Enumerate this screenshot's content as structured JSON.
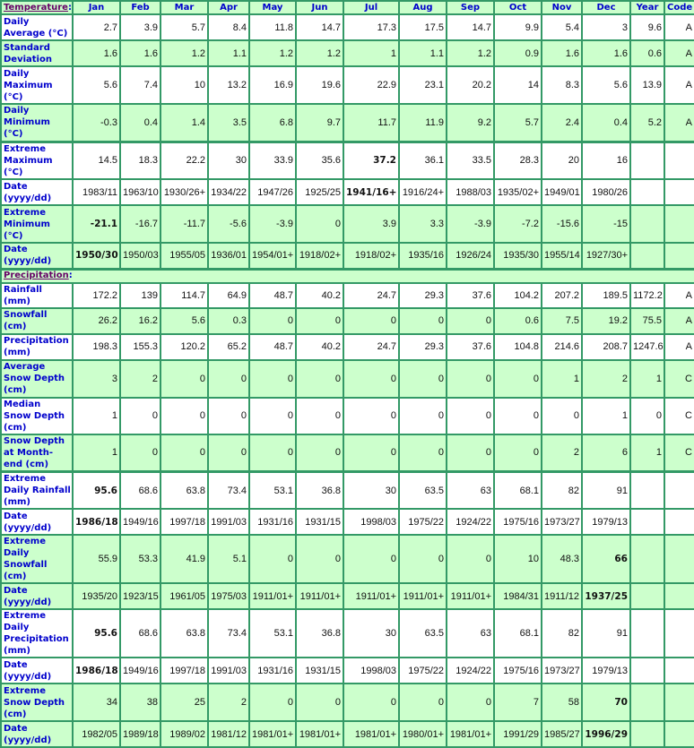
{
  "header": {
    "section_label": "Temperature",
    "columns": [
      "Jan",
      "Feb",
      "Mar",
      "Apr",
      "May",
      "Jun",
      "Jul",
      "Aug",
      "Sep",
      "Oct",
      "Nov",
      "Dec",
      "Year",
      "Code"
    ]
  },
  "colors": {
    "border": "#339966",
    "row_alt": "#ccffcc",
    "label_text": "#0000cc",
    "section_link": "#660066"
  },
  "sections": [
    {
      "title": "Temperature",
      "rows": [
        {
          "label": "Daily Average (°C)",
          "bg": "w",
          "h": 29,
          "values": [
            "2.7",
            "3.9",
            "5.7",
            "8.4",
            "11.8",
            "14.7",
            "17.3",
            "17.5",
            "14.7",
            "9.9",
            "5.4",
            "3",
            "9.6",
            "A"
          ],
          "bold": []
        },
        {
          "label": "Standard Deviation",
          "bg": "g",
          "h": 29,
          "values": [
            "1.6",
            "1.6",
            "1.2",
            "1.1",
            "1.2",
            "1.2",
            "1",
            "1.1",
            "1.2",
            "0.9",
            "1.6",
            "1.6",
            "0.6",
            "A"
          ],
          "bold": []
        },
        {
          "label": "Daily Maximum (°C)",
          "bg": "w",
          "h": 42,
          "values": [
            "5.6",
            "7.4",
            "10",
            "13.2",
            "16.9",
            "19.6",
            "22.9",
            "23.1",
            "20.2",
            "14",
            "8.3",
            "5.6",
            "13.9",
            "A"
          ],
          "bold": []
        },
        {
          "label": "Daily Minimum (°C)",
          "bg": "g",
          "h": 42,
          "values": [
            "-0.3",
            "0.4",
            "1.4",
            "3.5",
            "6.8",
            "9.7",
            "11.7",
            "11.9",
            "9.2",
            "5.7",
            "2.4",
            "0.4",
            "5.2",
            "A"
          ],
          "bold": []
        },
        {
          "label": "Extreme Maximum (°C)",
          "bg": "w",
          "h": 42,
          "sep": true,
          "values": [
            "14.5",
            "18.3",
            "22.2",
            "30",
            "33.9",
            "35.6",
            "37.2",
            "36.1",
            "33.5",
            "28.3",
            "20",
            "16",
            "",
            ""
          ],
          "bold": [
            6
          ]
        },
        {
          "label": "Date (yyyy/dd)",
          "bg": "w",
          "h": 29,
          "values": [
            "1983/11",
            "1963/10",
            "1930/26+",
            "1934/22",
            "1947/26",
            "1925/25",
            "1941/16+",
            "1916/24+",
            "1988/03",
            "1935/02+",
            "1949/01",
            "1980/26",
            "",
            ""
          ],
          "bold": [
            6
          ]
        },
        {
          "label": "Extreme Minimum (°C)",
          "bg": "g",
          "h": 42,
          "values": [
            "-21.1",
            "-16.7",
            "-11.7",
            "-5.6",
            "-3.9",
            "0",
            "3.9",
            "3.3",
            "-3.9",
            "-7.2",
            "-15.6",
            "-15",
            "",
            ""
          ],
          "bold": [
            0
          ]
        },
        {
          "label": "Date (yyyy/dd)",
          "bg": "g",
          "h": 29,
          "values": [
            "1950/30",
            "1950/03",
            "1955/05",
            "1936/01",
            "1954/01+",
            "1918/02+",
            "1918/02+",
            "1935/16",
            "1926/24",
            "1935/30",
            "1955/14",
            "1927/30+",
            "",
            ""
          ],
          "bold": [
            0
          ]
        }
      ]
    },
    {
      "title": "Precipitation",
      "rows": [
        {
          "label": "Rainfall (mm)",
          "bg": "w",
          "h": 16,
          "values": [
            "172.2",
            "139",
            "114.7",
            "64.9",
            "48.7",
            "40.2",
            "24.7",
            "29.3",
            "37.6",
            "104.2",
            "207.2",
            "189.5",
            "1172.2",
            "A"
          ],
          "bold": []
        },
        {
          "label": "Snowfall (cm)",
          "bg": "g",
          "h": 29,
          "values": [
            "26.2",
            "16.2",
            "5.6",
            "0.3",
            "0",
            "0",
            "0",
            "0",
            "0",
            "0.6",
            "7.5",
            "19.2",
            "75.5",
            "A"
          ],
          "bold": []
        },
        {
          "label": "Precipitation (mm)",
          "bg": "w",
          "h": 29,
          "values": [
            "198.3",
            "155.3",
            "120.2",
            "65.2",
            "48.7",
            "40.2",
            "24.7",
            "29.3",
            "37.6",
            "104.8",
            "214.6",
            "208.7",
            "1247.6",
            "A"
          ],
          "bold": []
        },
        {
          "label": "Average Snow Depth (cm)",
          "bg": "g",
          "h": 42,
          "values": [
            "3",
            "2",
            "0",
            "0",
            "0",
            "0",
            "0",
            "0",
            "0",
            "0",
            "1",
            "2",
            "1",
            "C"
          ],
          "bold": []
        },
        {
          "label": "Median Snow Depth (cm)",
          "bg": "w",
          "h": 29,
          "values": [
            "1",
            "0",
            "0",
            "0",
            "0",
            "0",
            "0",
            "0",
            "0",
            "0",
            "0",
            "1",
            "0",
            "C"
          ],
          "bold": []
        },
        {
          "label": "Snow Depth at Month-end (cm)",
          "bg": "g",
          "h": 42,
          "values": [
            "1",
            "0",
            "0",
            "0",
            "0",
            "0",
            "0",
            "0",
            "0",
            "0",
            "2",
            "6",
            "1",
            "C"
          ],
          "bold": []
        },
        {
          "label": "Extreme Daily Rainfall (mm)",
          "bg": "w",
          "h": 29,
          "sep": true,
          "values": [
            "95.6",
            "68.6",
            "63.8",
            "73.4",
            "53.1",
            "36.8",
            "30",
            "63.5",
            "63",
            "68.1",
            "82",
            "91",
            "",
            ""
          ],
          "bold": [
            0
          ]
        },
        {
          "label": "Date (yyyy/dd)",
          "bg": "w",
          "h": 29,
          "values": [
            "1986/18",
            "1949/16",
            "1997/18",
            "1991/03",
            "1931/16",
            "1931/15",
            "1998/03",
            "1975/22",
            "1924/22",
            "1975/16",
            "1973/27",
            "1979/13",
            "",
            ""
          ],
          "bold": [
            0
          ]
        },
        {
          "label": "Extreme Daily Snowfall (cm)",
          "bg": "g",
          "h": 42,
          "values": [
            "55.9",
            "53.3",
            "41.9",
            "5.1",
            "0",
            "0",
            "0",
            "0",
            "0",
            "10",
            "48.3",
            "66",
            "",
            ""
          ],
          "bold": [
            11
          ]
        },
        {
          "label": "Date (yyyy/dd)",
          "bg": "g",
          "h": 29,
          "values": [
            "1935/20",
            "1923/15",
            "1961/05",
            "1975/03",
            "1911/01+",
            "1911/01+",
            "1911/01+",
            "1911/01+",
            "1911/01+",
            "1984/31",
            "1911/12",
            "1937/25",
            "",
            ""
          ],
          "bold": [
            11
          ]
        },
        {
          "label": "Extreme Daily Precipitation (mm)",
          "bg": "w",
          "h": 42,
          "values": [
            "95.6",
            "68.6",
            "63.8",
            "73.4",
            "53.1",
            "36.8",
            "30",
            "63.5",
            "63",
            "68.1",
            "82",
            "91",
            "",
            ""
          ],
          "bold": [
            0
          ]
        },
        {
          "label": "Date (yyyy/dd)",
          "bg": "w",
          "h": 29,
          "values": [
            "1986/18",
            "1949/16",
            "1997/18",
            "1991/03",
            "1931/16",
            "1931/15",
            "1998/03",
            "1975/22",
            "1924/22",
            "1975/16",
            "1973/27",
            "1979/13",
            "",
            ""
          ],
          "bold": [
            0
          ]
        },
        {
          "label": "Extreme Snow Depth (cm)",
          "bg": "g",
          "h": 42,
          "values": [
            "34",
            "38",
            "25",
            "2",
            "0",
            "0",
            "0",
            "0",
            "0",
            "7",
            "58",
            "70",
            "",
            ""
          ],
          "bold": [
            11
          ]
        },
        {
          "label": "Date (yyyy/dd)",
          "bg": "g",
          "h": 29,
          "values": [
            "1982/05",
            "1989/18",
            "1989/02",
            "1981/12",
            "1981/01+",
            "1981/01+",
            "1981/01+",
            "1980/01+",
            "1981/01+",
            "1991/29",
            "1985/27",
            "1996/29",
            "",
            ""
          ],
          "bold": [
            11
          ]
        }
      ]
    }
  ]
}
